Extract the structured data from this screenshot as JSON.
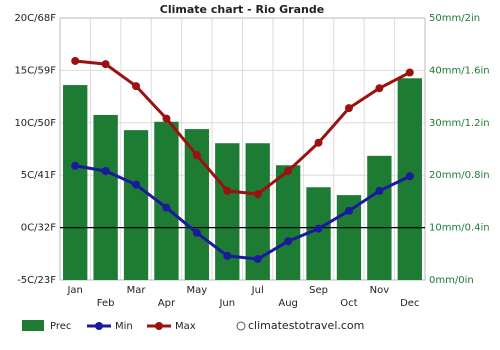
{
  "chart_data": {
    "type": "combo",
    "title": "Climate chart - Rio Grande",
    "categories": [
      "Jan",
      "Feb",
      "Mar",
      "Apr",
      "May",
      "Jun",
      "Jul",
      "Aug",
      "Sep",
      "Oct",
      "Nov",
      "Dec"
    ],
    "series": [
      {
        "name": "Prec",
        "type": "bar",
        "axis": "y2",
        "color": "#1e7b34",
        "values": [
          37.2,
          31.5,
          28.6,
          30.2,
          28.8,
          26.1,
          26.1,
          21.9,
          17.7,
          16.2,
          23.7,
          38.5
        ]
      },
      {
        "name": "Min",
        "type": "line",
        "color": "#1a1a9c",
        "values": [
          5.9,
          5.4,
          4.1,
          1.9,
          -0.5,
          -2.7,
          -3.0,
          -1.3,
          -0.1,
          1.6,
          3.5,
          4.9
        ]
      },
      {
        "name": "Max",
        "type": "line",
        "color": "#9c1010",
        "values": [
          15.9,
          15.6,
          13.5,
          10.4,
          6.9,
          3.5,
          3.2,
          5.4,
          8.1,
          11.4,
          13.3,
          14.8
        ]
      }
    ],
    "ylim": [
      -5,
      20
    ],
    "yticks": [
      {
        "value": -5,
        "label": "-5C/23F"
      },
      {
        "value": 0,
        "label": "0C/32F"
      },
      {
        "value": 5,
        "label": "5C/41F"
      },
      {
        "value": 10,
        "label": "10C/50F"
      },
      {
        "value": 15,
        "label": "15C/59F"
      },
      {
        "value": 20,
        "label": "20C/68F"
      }
    ],
    "y2lim": [
      0,
      50
    ],
    "y2ticks": [
      {
        "value": 0,
        "label": "0mm/0in"
      },
      {
        "value": 10,
        "label": "10mm/0.4in"
      },
      {
        "value": 20,
        "label": "20mm/0.8in"
      },
      {
        "value": 30,
        "label": "30mm/1.2in"
      },
      {
        "value": 40,
        "label": "40mm/1.6in"
      },
      {
        "value": 50,
        "label": "50mm/2in"
      }
    ],
    "grid": true,
    "watermark": "climatestotravel.com"
  }
}
